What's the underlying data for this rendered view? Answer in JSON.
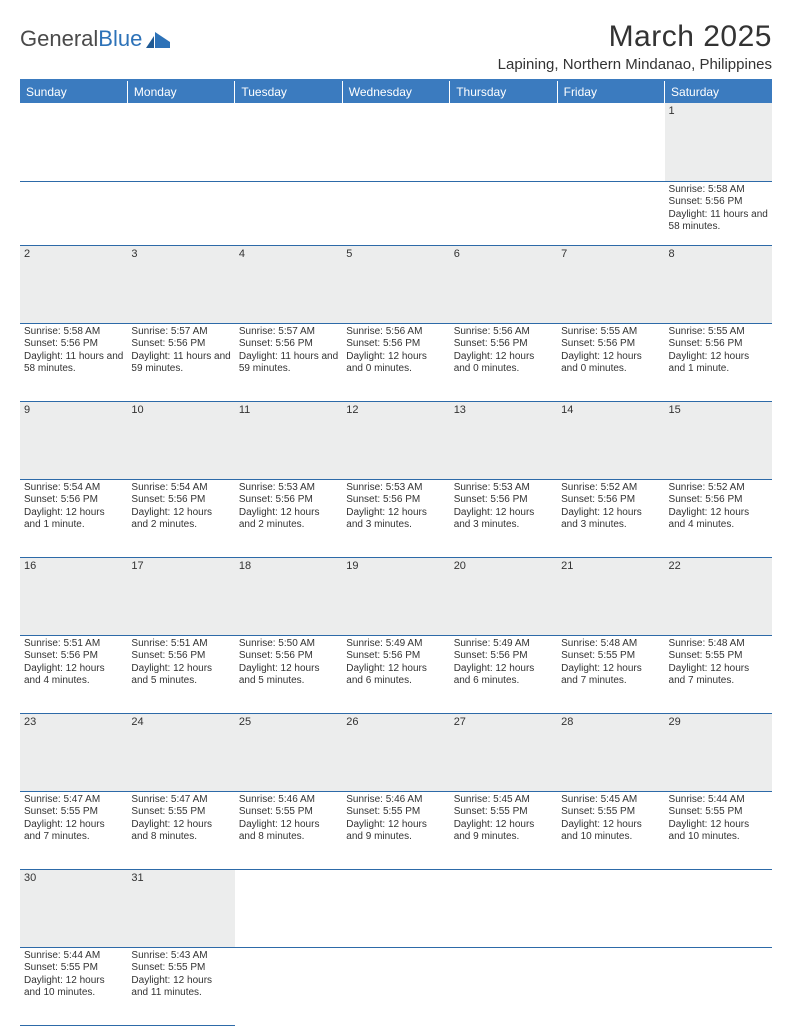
{
  "logo": {
    "word1": "General",
    "word2": "Blue"
  },
  "title": "March 2025",
  "location": "Lapining, Northern Mindanao, Philippines",
  "colors": {
    "header_bg": "#3b7bbf",
    "header_text": "#ffffff",
    "rule": "#3b7bbf",
    "daynum_bg": "#eceded",
    "cell_border": "#2d6aa8",
    "body_text": "#333333",
    "logo_gray": "#4a4a4a",
    "logo_blue": "#2d72b8"
  },
  "weekdays": [
    "Sunday",
    "Monday",
    "Tuesday",
    "Wednesday",
    "Thursday",
    "Friday",
    "Saturday"
  ],
  "weeks": [
    [
      null,
      null,
      null,
      null,
      null,
      null,
      {
        "n": "1",
        "sr": "Sunrise: 5:58 AM",
        "ss": "Sunset: 5:56 PM",
        "dl": "Daylight: 11 hours and 58 minutes."
      }
    ],
    [
      {
        "n": "2",
        "sr": "Sunrise: 5:58 AM",
        "ss": "Sunset: 5:56 PM",
        "dl": "Daylight: 11 hours and 58 minutes."
      },
      {
        "n": "3",
        "sr": "Sunrise: 5:57 AM",
        "ss": "Sunset: 5:56 PM",
        "dl": "Daylight: 11 hours and 59 minutes."
      },
      {
        "n": "4",
        "sr": "Sunrise: 5:57 AM",
        "ss": "Sunset: 5:56 PM",
        "dl": "Daylight: 11 hours and 59 minutes."
      },
      {
        "n": "5",
        "sr": "Sunrise: 5:56 AM",
        "ss": "Sunset: 5:56 PM",
        "dl": "Daylight: 12 hours and 0 minutes."
      },
      {
        "n": "6",
        "sr": "Sunrise: 5:56 AM",
        "ss": "Sunset: 5:56 PM",
        "dl": "Daylight: 12 hours and 0 minutes."
      },
      {
        "n": "7",
        "sr": "Sunrise: 5:55 AM",
        "ss": "Sunset: 5:56 PM",
        "dl": "Daylight: 12 hours and 0 minutes."
      },
      {
        "n": "8",
        "sr": "Sunrise: 5:55 AM",
        "ss": "Sunset: 5:56 PM",
        "dl": "Daylight: 12 hours and 1 minute."
      }
    ],
    [
      {
        "n": "9",
        "sr": "Sunrise: 5:54 AM",
        "ss": "Sunset: 5:56 PM",
        "dl": "Daylight: 12 hours and 1 minute."
      },
      {
        "n": "10",
        "sr": "Sunrise: 5:54 AM",
        "ss": "Sunset: 5:56 PM",
        "dl": "Daylight: 12 hours and 2 minutes."
      },
      {
        "n": "11",
        "sr": "Sunrise: 5:53 AM",
        "ss": "Sunset: 5:56 PM",
        "dl": "Daylight: 12 hours and 2 minutes."
      },
      {
        "n": "12",
        "sr": "Sunrise: 5:53 AM",
        "ss": "Sunset: 5:56 PM",
        "dl": "Daylight: 12 hours and 3 minutes."
      },
      {
        "n": "13",
        "sr": "Sunrise: 5:53 AM",
        "ss": "Sunset: 5:56 PM",
        "dl": "Daylight: 12 hours and 3 minutes."
      },
      {
        "n": "14",
        "sr": "Sunrise: 5:52 AM",
        "ss": "Sunset: 5:56 PM",
        "dl": "Daylight: 12 hours and 3 minutes."
      },
      {
        "n": "15",
        "sr": "Sunrise: 5:52 AM",
        "ss": "Sunset: 5:56 PM",
        "dl": "Daylight: 12 hours and 4 minutes."
      }
    ],
    [
      {
        "n": "16",
        "sr": "Sunrise: 5:51 AM",
        "ss": "Sunset: 5:56 PM",
        "dl": "Daylight: 12 hours and 4 minutes."
      },
      {
        "n": "17",
        "sr": "Sunrise: 5:51 AM",
        "ss": "Sunset: 5:56 PM",
        "dl": "Daylight: 12 hours and 5 minutes."
      },
      {
        "n": "18",
        "sr": "Sunrise: 5:50 AM",
        "ss": "Sunset: 5:56 PM",
        "dl": "Daylight: 12 hours and 5 minutes."
      },
      {
        "n": "19",
        "sr": "Sunrise: 5:49 AM",
        "ss": "Sunset: 5:56 PM",
        "dl": "Daylight: 12 hours and 6 minutes."
      },
      {
        "n": "20",
        "sr": "Sunrise: 5:49 AM",
        "ss": "Sunset: 5:56 PM",
        "dl": "Daylight: 12 hours and 6 minutes."
      },
      {
        "n": "21",
        "sr": "Sunrise: 5:48 AM",
        "ss": "Sunset: 5:55 PM",
        "dl": "Daylight: 12 hours and 7 minutes."
      },
      {
        "n": "22",
        "sr": "Sunrise: 5:48 AM",
        "ss": "Sunset: 5:55 PM",
        "dl": "Daylight: 12 hours and 7 minutes."
      }
    ],
    [
      {
        "n": "23",
        "sr": "Sunrise: 5:47 AM",
        "ss": "Sunset: 5:55 PM",
        "dl": "Daylight: 12 hours and 7 minutes."
      },
      {
        "n": "24",
        "sr": "Sunrise: 5:47 AM",
        "ss": "Sunset: 5:55 PM",
        "dl": "Daylight: 12 hours and 8 minutes."
      },
      {
        "n": "25",
        "sr": "Sunrise: 5:46 AM",
        "ss": "Sunset: 5:55 PM",
        "dl": "Daylight: 12 hours and 8 minutes."
      },
      {
        "n": "26",
        "sr": "Sunrise: 5:46 AM",
        "ss": "Sunset: 5:55 PM",
        "dl": "Daylight: 12 hours and 9 minutes."
      },
      {
        "n": "27",
        "sr": "Sunrise: 5:45 AM",
        "ss": "Sunset: 5:55 PM",
        "dl": "Daylight: 12 hours and 9 minutes."
      },
      {
        "n": "28",
        "sr": "Sunrise: 5:45 AM",
        "ss": "Sunset: 5:55 PM",
        "dl": "Daylight: 12 hours and 10 minutes."
      },
      {
        "n": "29",
        "sr": "Sunrise: 5:44 AM",
        "ss": "Sunset: 5:55 PM",
        "dl": "Daylight: 12 hours and 10 minutes."
      }
    ],
    [
      {
        "n": "30",
        "sr": "Sunrise: 5:44 AM",
        "ss": "Sunset: 5:55 PM",
        "dl": "Daylight: 12 hours and 10 minutes."
      },
      {
        "n": "31",
        "sr": "Sunrise: 5:43 AM",
        "ss": "Sunset: 5:55 PM",
        "dl": "Daylight: 12 hours and 11 minutes."
      },
      null,
      null,
      null,
      null,
      null
    ]
  ]
}
